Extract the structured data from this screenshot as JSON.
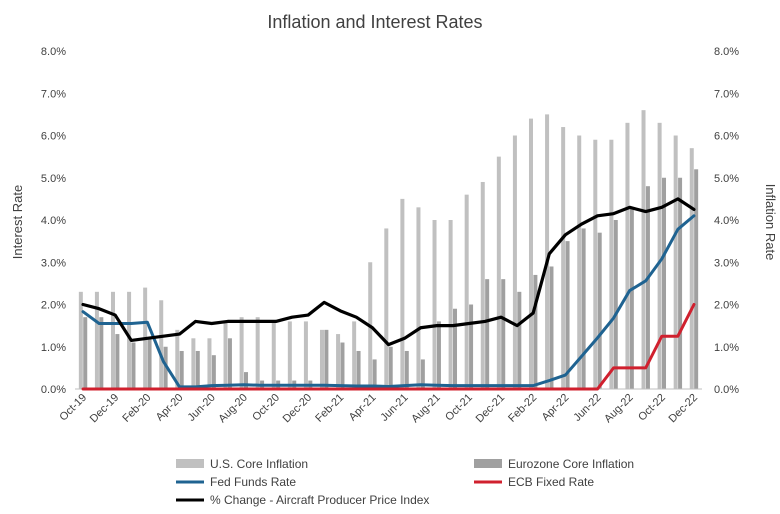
{
  "chart_data": {
    "type": "bar+line",
    "title": "Inflation and Interest Rates",
    "ylabel_left": "Interest Rate",
    "ylabel_right": "Inflation Rate",
    "ylim": [
      0,
      8
    ],
    "y_ticks": [
      "0.0%",
      "1.0%",
      "2.0%",
      "3.0%",
      "4.0%",
      "5.0%",
      "6.0%",
      "7.0%",
      "8.0%"
    ],
    "x_ticks": [
      "Oct-19",
      "Dec-19",
      "Feb-20",
      "Apr-20",
      "Jun-20",
      "Aug-20",
      "Oct-20",
      "Dec-20",
      "Feb-21",
      "Apr-21",
      "Jun-21",
      "Aug-21",
      "Oct-21",
      "Dec-21",
      "Feb-22",
      "Apr-22",
      "Jun-22",
      "Aug-22",
      "Oct-22",
      "Dec-22"
    ],
    "months": [
      "Oct-19",
      "Nov-19",
      "Dec-19",
      "Jan-20",
      "Feb-20",
      "Mar-20",
      "Apr-20",
      "May-20",
      "Jun-20",
      "Jul-20",
      "Aug-20",
      "Sep-20",
      "Oct-20",
      "Nov-20",
      "Dec-20",
      "Jan-21",
      "Feb-21",
      "Mar-21",
      "Apr-21",
      "May-21",
      "Jun-21",
      "Jul-21",
      "Aug-21",
      "Sep-21",
      "Oct-21",
      "Nov-21",
      "Dec-21",
      "Jan-22",
      "Feb-22",
      "Mar-22",
      "Apr-22",
      "May-22",
      "Jun-22",
      "Jul-22",
      "Aug-22",
      "Sep-22",
      "Oct-22",
      "Nov-22",
      "Dec-22"
    ],
    "series": [
      {
        "name": "U.S. Core Inflation",
        "kind": "bar",
        "color": "#c0c0c0",
        "values": [
          2.3,
          2.3,
          2.3,
          2.3,
          2.4,
          2.1,
          1.4,
          1.2,
          1.2,
          1.6,
          1.7,
          1.7,
          1.6,
          1.6,
          1.6,
          1.4,
          1.3,
          1.6,
          3.0,
          3.8,
          4.5,
          4.3,
          4.0,
          4.0,
          4.6,
          4.9,
          5.5,
          6.0,
          6.4,
          6.5,
          6.2,
          6.0,
          5.9,
          5.9,
          6.3,
          6.6,
          6.3,
          6.0,
          5.7
        ]
      },
      {
        "name": "Eurozone Core Inflation",
        "kind": "bar",
        "color": "#a0a0a0",
        "values": [
          1.7,
          1.7,
          1.3,
          1.1,
          1.2,
          1.0,
          0.9,
          0.9,
          0.8,
          1.2,
          0.4,
          0.2,
          0.2,
          0.2,
          0.2,
          1.4,
          1.1,
          0.9,
          0.7,
          1.0,
          0.9,
          0.7,
          1.6,
          1.9,
          2.0,
          2.6,
          2.6,
          2.3,
          2.7,
          2.9,
          3.5,
          3.8,
          3.7,
          4.0,
          4.3,
          4.8,
          5.0,
          5.0,
          5.2
        ]
      },
      {
        "name": "Fed Funds Rate",
        "kind": "line",
        "color": "#1f6391",
        "values": [
          1.83,
          1.55,
          1.55,
          1.55,
          1.58,
          0.65,
          0.05,
          0.05,
          0.08,
          0.09,
          0.1,
          0.09,
          0.09,
          0.09,
          0.09,
          0.09,
          0.08,
          0.07,
          0.07,
          0.06,
          0.08,
          0.1,
          0.09,
          0.08,
          0.08,
          0.08,
          0.08,
          0.08,
          0.08,
          0.2,
          0.33,
          0.77,
          1.21,
          1.68,
          2.33,
          2.56,
          3.08,
          3.78,
          4.1
        ]
      },
      {
        "name": "ECB Fixed Rate",
        "kind": "line",
        "color": "#d0202e",
        "values": [
          0,
          0,
          0,
          0,
          0,
          0,
          0,
          0,
          0,
          0,
          0,
          0,
          0,
          0,
          0,
          0,
          0,
          0,
          0,
          0,
          0,
          0,
          0,
          0,
          0,
          0,
          0,
          0,
          0,
          0,
          0,
          0,
          0,
          0.5,
          0.5,
          0.5,
          1.25,
          1.25,
          2.0
        ]
      },
      {
        "name": "% Change - Aircraft Producer Price Index",
        "kind": "line",
        "color": "#000000",
        "values": [
          2.0,
          1.9,
          1.75,
          1.15,
          1.2,
          1.25,
          1.3,
          1.6,
          1.55,
          1.6,
          1.6,
          1.6,
          1.6,
          1.7,
          1.75,
          2.05,
          1.85,
          1.7,
          1.45,
          1.05,
          1.2,
          1.45,
          1.5,
          1.5,
          1.55,
          1.6,
          1.7,
          1.5,
          1.8,
          3.2,
          3.65,
          3.9,
          4.1,
          4.15,
          4.3,
          4.2,
          4.3,
          4.5,
          4.25
        ]
      }
    ],
    "legend_position": "bottom",
    "grid": false
  }
}
